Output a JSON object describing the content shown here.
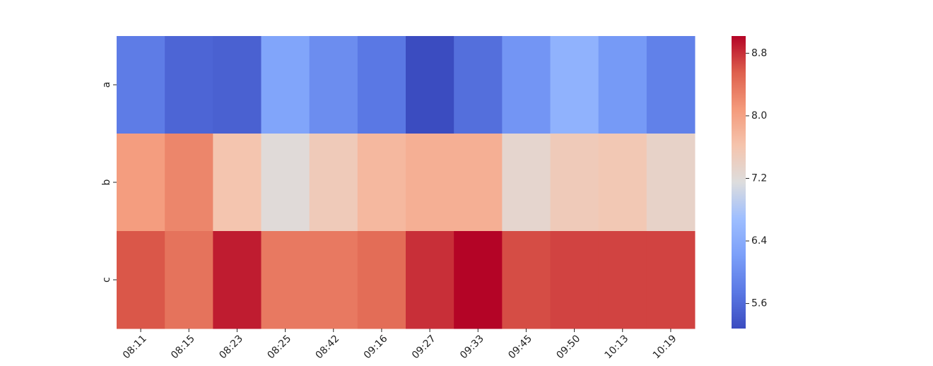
{
  "chart_data": {
    "type": "heatmap",
    "columns": [
      "08:11",
      "08:15",
      "08:23",
      "08:25",
      "08:42",
      "09:16",
      "09:27",
      "09:33",
      "09:45",
      "09:50",
      "10:13",
      "10:19"
    ],
    "rows": [
      "a",
      "b",
      "c"
    ],
    "values": [
      [
        5.8,
        5.55,
        5.5,
        6.3,
        6.0,
        5.75,
        5.28,
        5.65,
        6.1,
        6.5,
        6.15,
        5.85
      ],
      [
        8.05,
        8.25,
        7.6,
        7.2,
        7.5,
        7.75,
        7.85,
        7.85,
        7.3,
        7.5,
        7.55,
        7.35
      ],
      [
        8.6,
        8.4,
        8.9,
        8.35,
        8.35,
        8.45,
        8.8,
        9.02,
        8.65,
        8.7,
        8.7,
        8.7
      ]
    ],
    "colormap": "coolwarm",
    "clim": [
      5.28,
      9.02
    ],
    "cticks": [
      5.6,
      6.4,
      7.2,
      8.0,
      8.8
    ]
  }
}
